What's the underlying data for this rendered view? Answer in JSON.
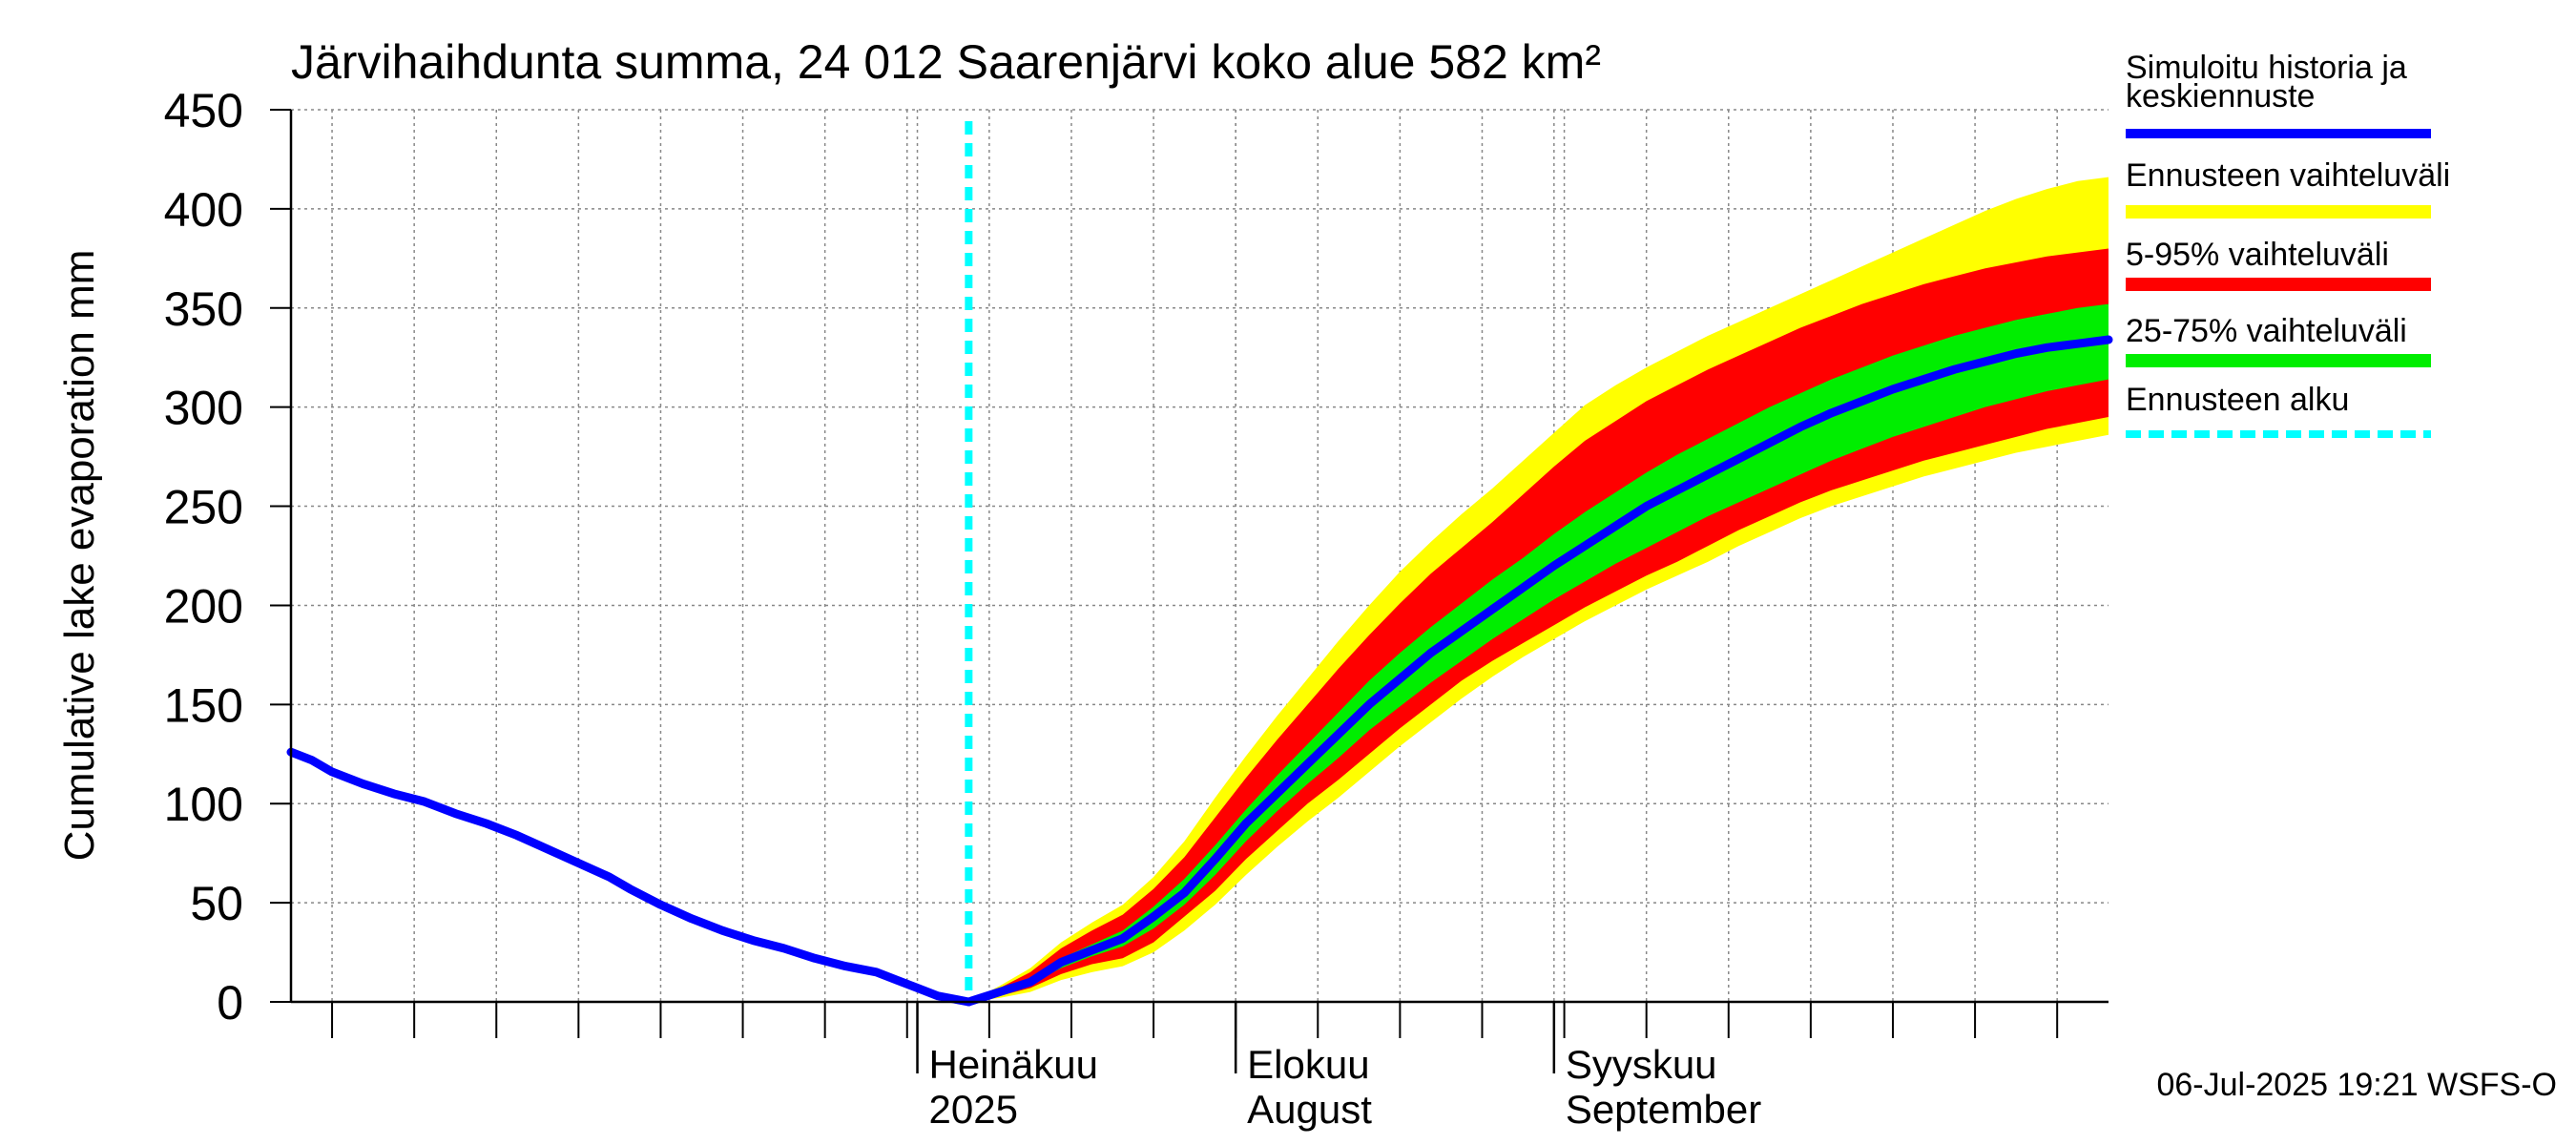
{
  "chart_data": {
    "type": "area",
    "title": "Järvihaihdunta summa, 24 012 Saarenjärvi koko alue 582 km²",
    "ylabel": "Cumulative lake evaporation   mm",
    "ylim": [
      0,
      450
    ],
    "yticks": [
      0,
      50,
      100,
      150,
      200,
      250,
      300,
      350,
      400,
      450
    ],
    "xlim": [
      "2025-05-01",
      "2025-10-25"
    ],
    "grid": true,
    "legend_placement": "right",
    "month_labels": [
      {
        "date": "2025-07-01",
        "line1": "Heinäkuu",
        "line2": "2025"
      },
      {
        "date": "2025-08-01",
        "line1": "Elokuu",
        "line2": "August"
      },
      {
        "date": "2025-09-01",
        "line1": "Syyskuu",
        "line2": "September"
      }
    ],
    "legend": [
      {
        "label": "Simuloitu historia ja keskiennuste",
        "color": "#0000ff",
        "style": "solid"
      },
      {
        "label": "Ennusteen vaihteluväli",
        "color": "#ffff00",
        "style": "solid"
      },
      {
        "label": "5-95% vaihteluväli",
        "color": "#ff0000",
        "style": "solid"
      },
      {
        "label": "25-75% vaihteluväli",
        "color": "#00ee00",
        "style": "solid"
      },
      {
        "label": "Ennusteen alku",
        "color": "#00ffff",
        "style": "dashed"
      }
    ],
    "forecast_start": "2025-07-06",
    "history": {
      "x": [
        "2025-05-01",
        "2025-05-03",
        "2025-05-05",
        "2025-05-08",
        "2025-05-11",
        "2025-05-14",
        "2025-05-17",
        "2025-05-20",
        "2025-05-23",
        "2025-05-26",
        "2025-05-29",
        "2025-06-01",
        "2025-06-03",
        "2025-06-06",
        "2025-06-09",
        "2025-06-12",
        "2025-06-15",
        "2025-06-18",
        "2025-06-21",
        "2025-06-24",
        "2025-06-27",
        "2025-06-29",
        "2025-07-01",
        "2025-07-03",
        "2025-07-05",
        "2025-07-06"
      ],
      "y": [
        126,
        122,
        116,
        110,
        105,
        101,
        95,
        90,
        84,
        77,
        70,
        63,
        57,
        49,
        42,
        36,
        31,
        27,
        22,
        18,
        15,
        11,
        7,
        3,
        1,
        0
      ]
    },
    "forecast": {
      "x": [
        "2025-07-06",
        "2025-07-09",
        "2025-07-12",
        "2025-07-15",
        "2025-07-18",
        "2025-07-21",
        "2025-07-24",
        "2025-07-27",
        "2025-07-30",
        "2025-08-02",
        "2025-08-05",
        "2025-08-08",
        "2025-08-11",
        "2025-08-14",
        "2025-08-17",
        "2025-08-20",
        "2025-08-23",
        "2025-08-26",
        "2025-08-29",
        "2025-09-01",
        "2025-09-04",
        "2025-09-07",
        "2025-09-10",
        "2025-09-13",
        "2025-09-16",
        "2025-09-19",
        "2025-09-22",
        "2025-09-25",
        "2025-09-28",
        "2025-10-01",
        "2025-10-04",
        "2025-10-07",
        "2025-10-10",
        "2025-10-13",
        "2025-10-16",
        "2025-10-19",
        "2025-10-22",
        "2025-10-25"
      ],
      "mean": [
        0,
        5,
        10,
        20,
        26,
        32,
        43,
        55,
        72,
        90,
        105,
        120,
        135,
        150,
        163,
        176,
        187,
        198,
        209,
        220,
        230,
        240,
        250,
        258,
        266,
        274,
        282,
        290,
        297,
        303,
        309,
        314,
        319,
        323,
        327,
        330,
        332,
        334
      ],
      "p25": [
        0,
        4,
        9,
        17,
        23,
        28,
        37,
        49,
        64,
        81,
        96,
        110,
        123,
        137,
        149,
        161,
        172,
        183,
        193,
        203,
        212,
        221,
        229,
        237,
        245,
        252,
        259,
        266,
        273,
        279,
        285,
        290,
        295,
        300,
        304,
        308,
        311,
        314
      ],
      "p75": [
        0,
        6,
        12,
        22,
        29,
        36,
        48,
        62,
        79,
        97,
        114,
        130,
        146,
        162,
        176,
        189,
        201,
        213,
        224,
        236,
        247,
        257,
        267,
        276,
        284,
        292,
        300,
        307,
        314,
        320,
        326,
        331,
        336,
        340,
        344,
        347,
        350,
        352
      ],
      "p5": [
        0,
        3,
        7,
        14,
        19,
        22,
        30,
        43,
        56,
        72,
        86,
        100,
        112,
        125,
        138,
        150,
        162,
        172,
        181,
        190,
        199,
        207,
        215,
        222,
        230,
        238,
        245,
        252,
        258,
        263,
        268,
        273,
        277,
        281,
        285,
        289,
        292,
        295
      ],
      "p95": [
        0,
        7,
        15,
        27,
        36,
        44,
        57,
        73,
        93,
        113,
        132,
        150,
        168,
        185,
        201,
        216,
        229,
        242,
        256,
        270,
        283,
        293,
        303,
        311,
        319,
        326,
        333,
        340,
        346,
        352,
        357,
        362,
        366,
        370,
        373,
        376,
        378,
        380
      ],
      "min": [
        0,
        2,
        5,
        11,
        15,
        18,
        25,
        36,
        49,
        64,
        78,
        91,
        103,
        116,
        129,
        141,
        153,
        164,
        174,
        183,
        192,
        200,
        208,
        215,
        222,
        230,
        237,
        244,
        250,
        255,
        260,
        265,
        269,
        273,
        277,
        280,
        283,
        286
      ],
      "max": [
        0,
        8,
        17,
        30,
        40,
        49,
        63,
        81,
        103,
        124,
        144,
        163,
        182,
        200,
        217,
        232,
        246,
        259,
        273,
        287,
        301,
        311,
        320,
        328,
        336,
        343,
        350,
        357,
        364,
        371,
        378,
        385,
        392,
        399,
        405,
        410,
        414,
        416
      ]
    }
  },
  "footer": {
    "timestamp": "06-Jul-2025 19:21 WSFS-O"
  }
}
